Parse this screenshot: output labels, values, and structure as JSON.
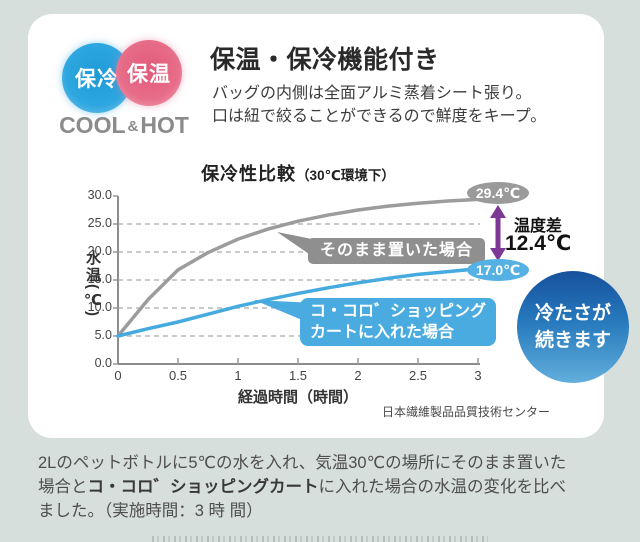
{
  "page": {
    "background_color": "#d6dfdb",
    "card_color": "#ffffff"
  },
  "badge": {
    "cool_label": "保冷",
    "hot_label": "保温",
    "caption_cool": "COOL",
    "caption_amp": "&",
    "caption_hot": "HOT",
    "cool_color": "#2ea7e0",
    "hot_color": "#e76d89"
  },
  "header": {
    "title": "保温・保冷機能付き",
    "subtitle_line1": "バッグの内側は全面アルミ蒸着シート張り。",
    "subtitle_line2": "口は紐で絞ることができるので鮮度をキープ。"
  },
  "chart_data": {
    "type": "line",
    "title": "保冷性比較",
    "title_suffix": "（30℃環境下）",
    "xlabel": "経過時間（時間）",
    "ylabel": "水温(℃)",
    "xlim": [
      0,
      3
    ],
    "ylim": [
      0,
      30
    ],
    "grid": true,
    "x_ticks": [
      "0",
      "0.5",
      "1",
      "1.5",
      "2",
      "2.5",
      "3"
    ],
    "y_ticks": [
      "30.0",
      "25.0",
      "20.0",
      "15.0",
      "10.0",
      "5.0",
      "0.0"
    ],
    "x": [
      0,
      0.25,
      0.5,
      0.75,
      1,
      1.25,
      1.5,
      1.75,
      2,
      2.25,
      2.5,
      2.75,
      3
    ],
    "series": [
      {
        "name": "そのまま置いた場合",
        "color": "#9c9c9c",
        "values": [
          5.0,
          11.5,
          16.8,
          19.9,
          22.3,
          24.1,
          25.5,
          26.6,
          27.5,
          28.2,
          28.7,
          29.1,
          29.4
        ],
        "end_label": "29.4℃"
      },
      {
        "name": "コ・コロ゛ショッピングカートに入れた場合",
        "color": "#45aadf",
        "values": [
          5.0,
          6.3,
          7.5,
          8.9,
          10.3,
          11.5,
          12.6,
          13.6,
          14.5,
          15.3,
          16.0,
          16.5,
          17.0
        ],
        "end_label": "17.0℃"
      }
    ],
    "annotations": {
      "ambient_label": "そのまま置いた場合",
      "cart_label_line1": "コ・コロ゛ショッピング",
      "cart_label_line2": "カートに入れた場合",
      "ambient_end_temp": "29.4℃",
      "cart_end_temp": "17.0℃",
      "diff_label": "温度差",
      "diff_value": "12.4℃",
      "arrow_color": "#7d3795"
    }
  },
  "highlight_circle": {
    "line1": "冷たさが",
    "line2": "続きます"
  },
  "source_credit": "日本繊維製品品質技術センター",
  "footer": {
    "line1": "2Lのペットボトルに5℃の水を入れ、気温30℃の場所にそのまま置いた",
    "line2_pre": "場合と",
    "line2_bold": "コ・コロ゛ショッピングカート",
    "line2_post": "に入れた場合の水温の変化を比べ",
    "line3": "ました。（実施時間：3 時 間）"
  }
}
